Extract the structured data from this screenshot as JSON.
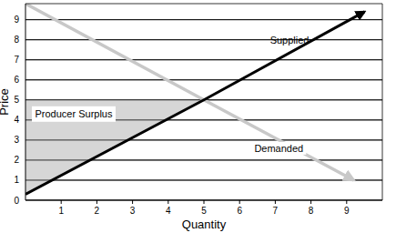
{
  "chart_data": {
    "type": "line",
    "x_label": "Quantity",
    "y_label": "Price",
    "xlim": [
      0,
      10
    ],
    "ylim": [
      0,
      9.8
    ],
    "xticks": [
      1,
      2,
      3,
      4,
      5,
      6,
      7,
      8,
      9
    ],
    "yticks": [
      0,
      1,
      2,
      3,
      4,
      5,
      6,
      7,
      8,
      9
    ],
    "grid": true,
    "series": [
      {
        "name": "Supplied",
        "color": "#000000",
        "x": [
          0,
          5,
          9.5
        ],
        "values": [
          0.3,
          5,
          9.4
        ]
      },
      {
        "name": "Demanded",
        "color": "#c8c8c8",
        "x": [
          0,
          5,
          9.2
        ],
        "values": [
          9.8,
          5,
          1
        ]
      }
    ],
    "shaded_area": {
      "label": "Producer Surplus",
      "price": 5,
      "quantity": 5
    }
  }
}
